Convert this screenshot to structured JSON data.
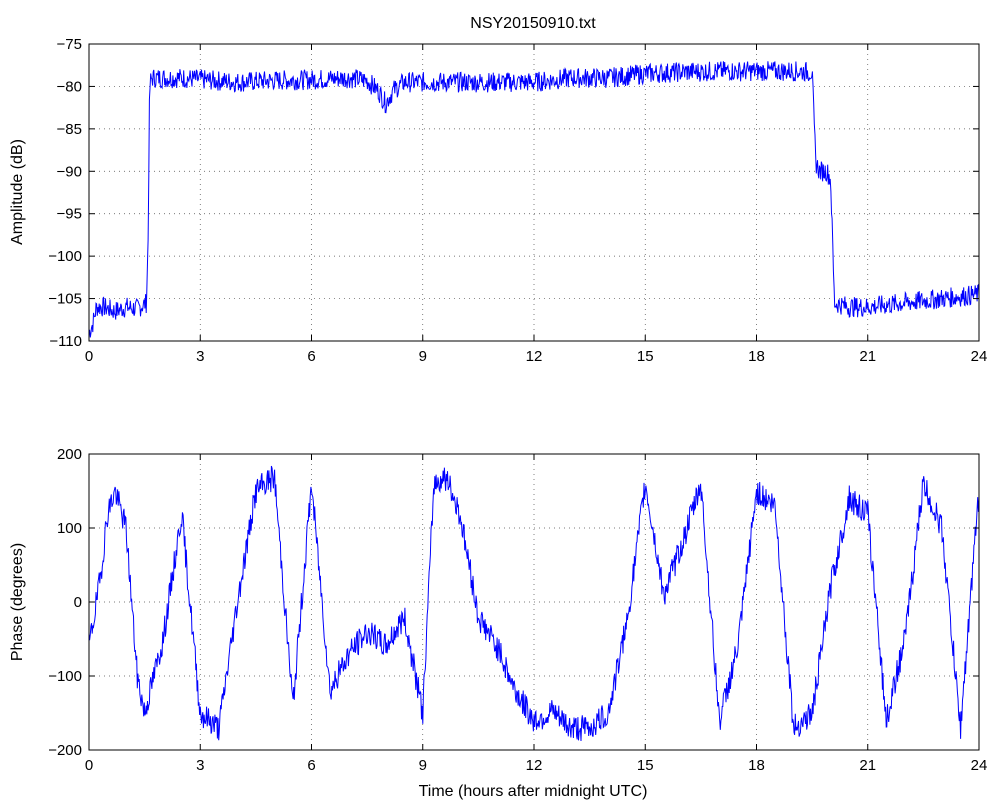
{
  "colors": {
    "series": "#0000ff",
    "axes": "#000000",
    "background": "#ffffff"
  },
  "chart_data": [
    {
      "type": "line",
      "title": "NSY20150910.txt",
      "xlabel": "",
      "ylabel": "Amplitude (dB)",
      "xlim": [
        0,
        24
      ],
      "ylim": [
        -110,
        -75
      ],
      "xticks": [
        "0",
        "3",
        "6",
        "9",
        "12",
        "15",
        "18",
        "21",
        "24"
      ],
      "yticks": [
        "−75",
        "−80",
        "−85",
        "−90",
        "−95",
        "−100",
        "−105",
        "−110"
      ],
      "grid": true,
      "legend": "none",
      "series": [
        {
          "x": [
            0,
            0.1,
            0.2,
            0.4,
            0.7,
            1.0,
            1.3,
            1.55,
            1.6,
            1.62,
            1.65,
            1.7,
            2.0,
            2.5,
            3.0,
            4.0,
            5.0,
            6.0,
            7.0,
            7.5,
            7.8,
            8.0,
            8.2,
            8.5,
            9.0,
            10.0,
            11.0,
            12.0,
            13.0,
            14.0,
            15.0,
            16.0,
            17.0,
            18.0,
            19.0,
            19.5,
            19.55,
            19.6,
            19.7,
            19.9,
            20.0,
            20.05,
            20.1,
            20.5,
            21.0,
            22.0,
            23.0,
            24.0
          ],
          "y": [
            -109,
            -108,
            -106,
            -106,
            -106.5,
            -106,
            -106.2,
            -105.5,
            -97,
            -84,
            -79.5,
            -79,
            -79,
            -79,
            -79.2,
            -79.5,
            -79.3,
            -79.2,
            -79,
            -79.3,
            -80.5,
            -82,
            -80.5,
            -79.5,
            -79.5,
            -79.5,
            -79.5,
            -79.5,
            -79,
            -79,
            -78.5,
            -78.3,
            -78.2,
            -78.2,
            -78.2,
            -78.3,
            -84,
            -89,
            -90,
            -90,
            -91,
            -98,
            -105.5,
            -106,
            -106,
            -105.5,
            -105,
            -104.5
          ]
        }
      ]
    },
    {
      "type": "line",
      "title": "",
      "xlabel": "Time (hours after midnight UTC)",
      "ylabel": "Phase (degrees)",
      "xlim": [
        0,
        24
      ],
      "ylim": [
        -200,
        200
      ],
      "xticks": [
        "0",
        "3",
        "6",
        "9",
        "12",
        "15",
        "18",
        "21",
        "24"
      ],
      "yticks": [
        "200",
        "100",
        "0",
        "−100",
        "−200"
      ],
      "grid": true,
      "legend": "none",
      "series": [
        {
          "x": [
            0,
            0.3,
            0.5,
            0.7,
            1.0,
            1.3,
            1.5,
            2.0,
            2.5,
            3.0,
            3.5,
            4.0,
            4.5,
            5.0,
            5.5,
            6.0,
            6.5,
            7.0,
            7.5,
            8.0,
            8.5,
            9.0,
            9.3,
            9.6,
            10.0,
            10.5,
            11.0,
            11.5,
            12.0,
            12.5,
            13.0,
            13.5,
            14.0,
            14.5,
            15.0,
            15.5,
            16.0,
            16.5,
            17.0,
            17.5,
            18.0,
            18.5,
            19.0,
            19.5,
            20.0,
            20.5,
            21.0,
            21.5,
            22.0,
            22.5,
            23.0,
            23.5,
            24.0
          ],
          "y": [
            -60,
            30,
            120,
            150,
            100,
            -100,
            -150,
            -50,
            120,
            -150,
            -170,
            0,
            150,
            170,
            -140,
            160,
            -120,
            -70,
            -40,
            -60,
            -20,
            -150,
            160,
            170,
            120,
            -20,
            -60,
            -120,
            -160,
            -150,
            -170,
            -170,
            -150,
            -30,
            160,
            10,
            80,
            160,
            -160,
            -60,
            150,
            130,
            -170,
            -150,
            20,
            140,
            120,
            -160,
            -50,
            160,
            100,
            -170,
            150
          ]
        }
      ]
    }
  ]
}
